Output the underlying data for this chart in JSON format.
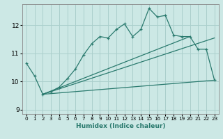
{
  "xlabel": "Humidex (Indice chaleur)",
  "xlim": [
    -0.5,
    23.5
  ],
  "ylim": [
    8.85,
    12.75
  ],
  "xticks": [
    0,
    1,
    2,
    3,
    4,
    5,
    6,
    7,
    8,
    9,
    10,
    11,
    12,
    13,
    14,
    15,
    16,
    17,
    18,
    19,
    20,
    21,
    22,
    23
  ],
  "yticks": [
    9,
    10,
    11,
    12
  ],
  "bg_color": "#cce8e5",
  "line_color": "#2a7a6e",
  "grid_color": "#aacfcc",
  "line1_x": [
    0,
    1,
    2,
    3,
    4,
    5,
    6,
    7,
    8,
    9,
    10,
    11,
    12,
    13,
    14,
    15,
    16,
    17,
    18,
    19,
    20,
    21,
    22,
    23
  ],
  "line1_y": [
    10.65,
    10.2,
    9.55,
    9.65,
    9.8,
    10.1,
    10.45,
    10.95,
    11.35,
    11.6,
    11.55,
    11.85,
    12.05,
    11.6,
    11.85,
    12.6,
    12.3,
    12.35,
    11.65,
    11.6,
    11.6,
    11.15,
    11.15,
    10.05
  ],
  "line2_x": [
    2,
    23
  ],
  "line2_y": [
    9.55,
    10.05
  ],
  "line3_x": [
    2,
    23
  ],
  "line3_y": [
    9.55,
    11.55
  ],
  "line4_x": [
    2,
    20
  ],
  "line4_y": [
    9.55,
    11.6
  ]
}
